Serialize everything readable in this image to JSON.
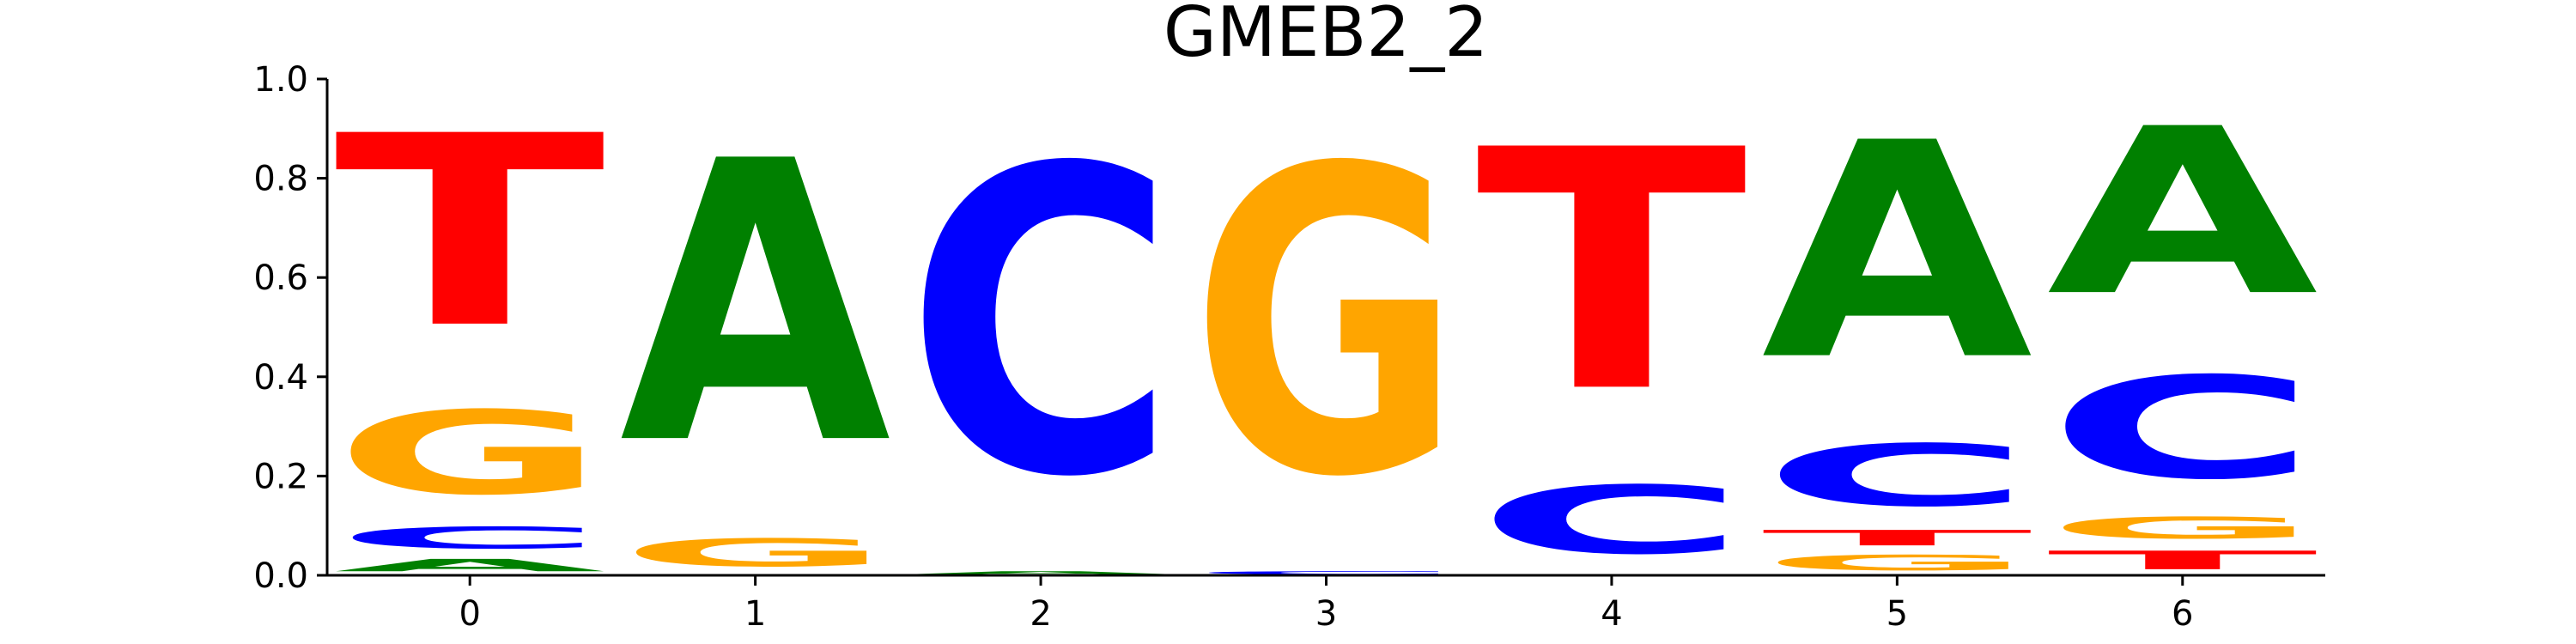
{
  "chart_data": {
    "type": "sequence-logo",
    "title": "GMEB2_2",
    "xlabel": "",
    "ylabel": "",
    "ylim": [
      0,
      1
    ],
    "yticks": [
      0.0,
      0.2,
      0.4,
      0.6,
      0.8,
      1.0
    ],
    "ytick_labels": [
      "0.0",
      "0.2",
      "0.4",
      "0.6",
      "0.8",
      "1.0"
    ],
    "xticks": [
      0,
      1,
      2,
      3,
      4,
      5,
      6
    ],
    "xtick_labels": [
      "0",
      "1",
      "2",
      "3",
      "4",
      "5",
      "6"
    ],
    "colors": {
      "A": "#008000",
      "C": "#0000ff",
      "G": "#ffa500",
      "T": "#ff0000"
    },
    "positions": [
      {
        "pos": 0,
        "stack": [
          {
            "base": "A",
            "value": 0.04
          },
          {
            "base": "C",
            "value": 0.07
          },
          {
            "base": "G",
            "value": 0.27
          },
          {
            "base": "T",
            "value": 0.62
          }
        ]
      },
      {
        "pos": 1,
        "stack": [
          {
            "base": "G",
            "value": 0.09
          },
          {
            "base": "A",
            "value": 0.91
          }
        ]
      },
      {
        "pos": 2,
        "stack": [
          {
            "base": "A",
            "value": 0.01
          },
          {
            "base": "C",
            "value": 0.99
          }
        ]
      },
      {
        "pos": 3,
        "stack": [
          {
            "base": "C",
            "value": 0.01
          },
          {
            "base": "G",
            "value": 0.99
          }
        ]
      },
      {
        "pos": 4,
        "stack": [
          {
            "base": "C",
            "value": 0.22
          },
          {
            "base": "T",
            "value": 0.78
          }
        ]
      },
      {
        "pos": 5,
        "stack": [
          {
            "base": "G",
            "value": 0.05
          },
          {
            "base": "T",
            "value": 0.05
          },
          {
            "base": "C",
            "value": 0.2
          },
          {
            "base": "A",
            "value": 0.7
          }
        ]
      },
      {
        "pos": 6,
        "stack": [
          {
            "base": "T",
            "value": 0.06
          },
          {
            "base": "G",
            "value": 0.07
          },
          {
            "base": "C",
            "value": 0.33
          },
          {
            "base": "A",
            "value": 0.54
          }
        ]
      }
    ]
  }
}
